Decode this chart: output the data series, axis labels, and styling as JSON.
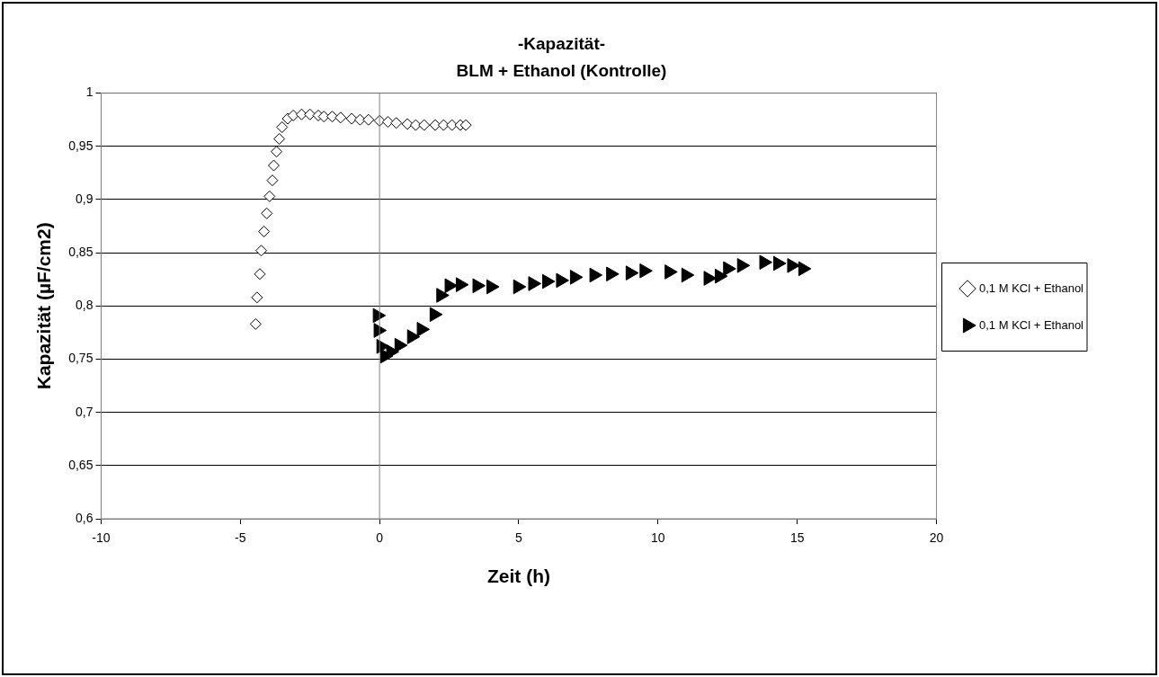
{
  "chart_data": {
    "type": "scatter",
    "title": "-Kapazität-",
    "subtitle": "BLM + Ethanol (Kontrolle)",
    "xlabel": "Zeit (h)",
    "ylabel": "Kapazität (µF/cm2)",
    "xlim": [
      -10,
      20
    ],
    "xticks": [
      -10,
      -5,
      0,
      5,
      10,
      15,
      20
    ],
    "ylim": [
      0.6,
      1
    ],
    "yticks": [
      {
        "value": 0.6,
        "label": "0,6"
      },
      {
        "value": 0.65,
        "label": "0,65"
      },
      {
        "value": 0.7,
        "label": "0,7"
      },
      {
        "value": 0.75,
        "label": "0,75"
      },
      {
        "value": 0.8,
        "label": "0,8"
      },
      {
        "value": 0.85,
        "label": "0,85"
      },
      {
        "value": 0.9,
        "label": "0,9"
      },
      {
        "value": 0.95,
        "label": "0,95"
      },
      1
    ],
    "grid": "y",
    "legend": "right",
    "series": [
      {
        "name": "0,1 M KCl + Ethanol",
        "color": "#ffffff",
        "marker": "diamond",
        "x": [
          -4.45,
          -4.4,
          -4.3,
          -4.25,
          -4.15,
          -4.05,
          -3.95,
          -3.85,
          -3.8,
          -3.7,
          -3.6,
          -3.5,
          -3.3,
          -3.1,
          -2.8,
          -2.5,
          -2.2,
          -2,
          -1.7,
          -1.4,
          -1,
          -0.7,
          -0.4,
          0,
          0.3,
          0.6,
          1,
          1.3,
          1.6,
          2,
          2.3,
          2.6,
          2.9,
          3.1
        ],
        "values": [
          0.783,
          0.808,
          0.83,
          0.852,
          0.87,
          0.887,
          0.903,
          0.918,
          0.932,
          0.945,
          0.957,
          0.968,
          0.976,
          0.979,
          0.98,
          0.98,
          0.979,
          0.978,
          0.978,
          0.977,
          0.976,
          0.975,
          0.975,
          0.974,
          0.973,
          0.972,
          0.971,
          0.97,
          0.97,
          0.97,
          0.97,
          0.97,
          0.97,
          0.97
        ]
      },
      {
        "name": "0,1 M KCl + Ethanol",
        "color": "#000000",
        "marker": "triangle",
        "x": [
          -0.08,
          -0.05,
          0.05,
          0.19,
          0.4,
          0.7,
          1.15,
          1.5,
          1.96,
          2.2,
          2.5,
          2.9,
          3.5,
          4,
          4.96,
          5.5,
          6,
          6.5,
          7,
          7.7,
          8.3,
          9,
          9.5,
          10.4,
          11,
          11.8,
          12.2,
          12.5,
          13,
          13.8,
          14.3,
          14.8,
          15.2
        ],
        "values": [
          0.791,
          0.777,
          0.762,
          0.753,
          0.757,
          0.763,
          0.771,
          0.778,
          0.792,
          0.81,
          0.819,
          0.82,
          0.819,
          0.818,
          0.818,
          0.821,
          0.823,
          0.824,
          0.827,
          0.829,
          0.83,
          0.831,
          0.833,
          0.832,
          0.829,
          0.826,
          0.828,
          0.835,
          0.838,
          0.841,
          0.84,
          0.838,
          0.835
        ]
      }
    ]
  }
}
